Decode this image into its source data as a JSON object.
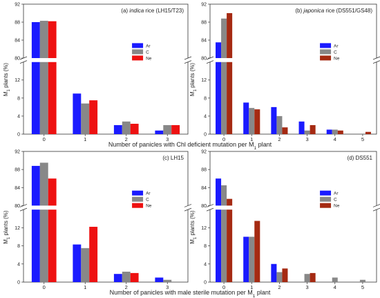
{
  "figure": {
    "xlabel_top": [
      "Number of panicles with Chl deficient mutation per M",
      "1",
      " plant"
    ],
    "xlabel_bottom": [
      "Number of panicles with male sterile mutation per M",
      "1",
      " plant"
    ]
  },
  "colors": {
    "Ar": "#1a1aff",
    "C": "#888888",
    "Ne": "#ee1111",
    "Ne_b": "#a52a12"
  },
  "chart_data": [
    {
      "id": "a",
      "type": "bar",
      "title_prefix": "(a) ",
      "title_italic": "indica",
      "title_rest": " rice (LH15/T23)",
      "ylabel": [
        "M",
        "1",
        " plants (%)"
      ],
      "categories": [
        "0",
        "1",
        "2",
        "3"
      ],
      "lower_ylim": [
        0,
        16
      ],
      "lower_ticks": [
        "0",
        "4",
        "8",
        "12"
      ],
      "upper_ylim": [
        80,
        92
      ],
      "upper_ticks": [
        "80",
        "84",
        "88",
        "92"
      ],
      "legend_position": "right",
      "series": [
        {
          "name": "Ar",
          "values": [
            88.0,
            9.0,
            2.0,
            0.8
          ]
        },
        {
          "name": "C",
          "values": [
            88.3,
            6.8,
            2.8,
            2.0
          ]
        },
        {
          "name": "Ne",
          "values": [
            88.2,
            7.5,
            2.3,
            2.0
          ]
        }
      ]
    },
    {
      "id": "b",
      "type": "bar",
      "title_prefix": "(b) ",
      "title_italic": "japonica",
      "title_rest": " rice (DS551/GS48)",
      "ylabel": [
        "M",
        "1",
        " plants (%)"
      ],
      "categories": [
        "0",
        "1",
        "2",
        "3",
        "4",
        "5"
      ],
      "lower_ylim": [
        0,
        16
      ],
      "lower_ticks": [
        "0",
        "4",
        "8",
        "12"
      ],
      "upper_ylim": [
        80,
        92
      ],
      "upper_ticks": [
        "80",
        "84",
        "88",
        "92"
      ],
      "legend_position": "right",
      "series": [
        {
          "name": "Ar",
          "values": [
            83.5,
            7.0,
            6.0,
            2.8,
            1.0,
            0.0
          ]
        },
        {
          "name": "C",
          "values": [
            88.8,
            5.8,
            4.0,
            0.8,
            1.0,
            0.0
          ]
        },
        {
          "name": "Ne",
          "values": [
            90.0,
            5.5,
            1.5,
            2.0,
            0.8,
            0.5
          ]
        }
      ]
    },
    {
      "id": "c",
      "type": "bar",
      "title_prefix": "(c) LH15",
      "title_italic": "",
      "title_rest": "",
      "ylabel": [
        "M",
        "1",
        " plants (%)"
      ],
      "categories": [
        "0",
        "1",
        "2",
        "3"
      ],
      "lower_ylim": [
        0,
        16
      ],
      "lower_ticks": [
        "0",
        "4",
        "8",
        "12"
      ],
      "upper_ylim": [
        80,
        92
      ],
      "upper_ticks": [
        "80",
        "84",
        "88",
        "92"
      ],
      "legend_position": "right",
      "series": [
        {
          "name": "Ar",
          "values": [
            88.8,
            8.3,
            1.8,
            1.0
          ]
        },
        {
          "name": "C",
          "values": [
            89.5,
            7.5,
            2.3,
            0.5
          ]
        },
        {
          "name": "Ne",
          "values": [
            86.0,
            12.2,
            2.0,
            0.0
          ]
        }
      ]
    },
    {
      "id": "d",
      "type": "bar",
      "title_prefix": "(d) DS551",
      "title_italic": "",
      "title_rest": "",
      "ylabel": [
        "M",
        "1",
        " plants (%)"
      ],
      "categories": [
        "0",
        "1",
        "2",
        "3",
        "4",
        "5"
      ],
      "lower_ylim": [
        0,
        16
      ],
      "lower_ticks": [
        "0",
        "4",
        "8",
        "12"
      ],
      "upper_ylim": [
        80,
        92
      ],
      "upper_ticks": [
        "80",
        "84",
        "88",
        "92"
      ],
      "legend_position": "right",
      "series": [
        {
          "name": "Ar",
          "values": [
            86.0,
            10.0,
            4.0,
            0.0,
            0.0,
            0.0
          ]
        },
        {
          "name": "C",
          "values": [
            84.5,
            10.0,
            2.2,
            1.8,
            1.0,
            0.5
          ]
        },
        {
          "name": "Ne",
          "values": [
            81.5,
            13.5,
            3.0,
            2.0,
            0.0,
            0.0
          ]
        }
      ]
    }
  ]
}
